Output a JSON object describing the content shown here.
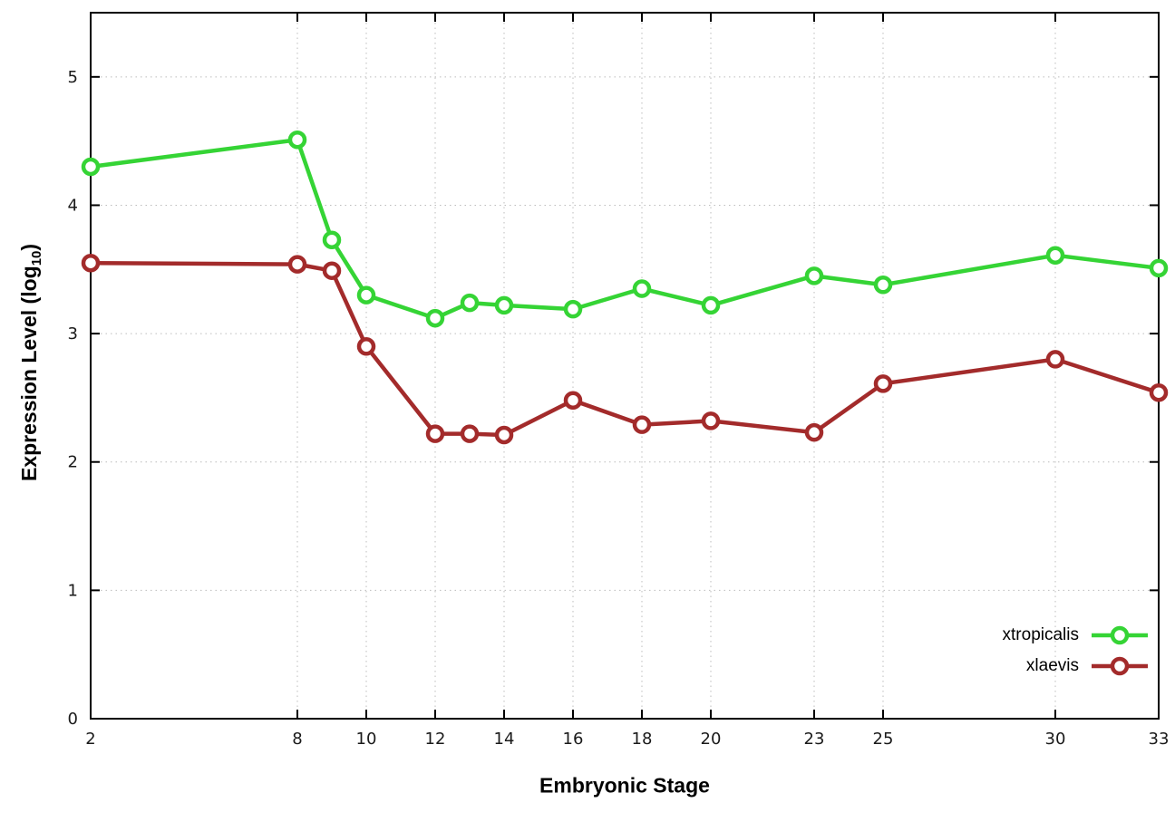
{
  "chart_data": {
    "type": "line",
    "x": [
      2,
      8,
      9,
      10,
      12,
      13,
      14,
      16,
      18,
      20,
      23,
      25,
      30,
      33
    ],
    "series": [
      {
        "name": "xtropicalis",
        "color": "#35d435",
        "values": [
          4.3,
          4.51,
          3.73,
          3.3,
          3.12,
          3.24,
          3.22,
          3.19,
          3.35,
          3.22,
          3.45,
          3.38,
          3.61,
          3.51
        ]
      },
      {
        "name": "xlaevis",
        "color": "#a32b2b",
        "values": [
          3.55,
          3.54,
          3.49,
          2.9,
          2.22,
          2.22,
          2.21,
          2.48,
          2.29,
          2.32,
          2.23,
          2.61,
          2.8,
          2.54
        ]
      }
    ],
    "title": "",
    "xlabel": "Embryonic Stage",
    "ylabel": "Expression Level (log10)",
    "ylabel_parts": {
      "prefix": "Expression Level (log",
      "sub": "10",
      "suffix": ")"
    },
    "xlim": [
      2,
      33
    ],
    "ylim": [
      0,
      5.5
    ],
    "xticks": [
      2,
      8,
      10,
      12,
      14,
      16,
      18,
      20,
      23,
      25,
      30,
      33
    ],
    "yticks": [
      0,
      1,
      2,
      3,
      4,
      5
    ],
    "grid": true,
    "legend_position": "bottom-right",
    "marker": "open-circle",
    "border_color": "#000000",
    "grid_color": "#bcbcbc",
    "tick_label_color": "#1a1a1a"
  }
}
